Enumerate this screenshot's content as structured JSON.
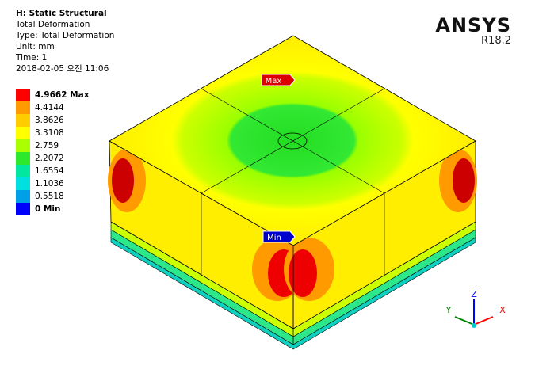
{
  "header": {
    "title": "H: Static Structural",
    "lines": [
      "Total Deformation",
      "Type: Total Deformation",
      "Unit: mm",
      "Time: 1",
      "2018-02-05 오전 11:06"
    ]
  },
  "legend": [
    {
      "label": "4.9662 Max",
      "color": "#ff0000"
    },
    {
      "label": "4.4144",
      "color": "#ff9a00"
    },
    {
      "label": "3.8626",
      "color": "#ffcc00"
    },
    {
      "label": "3.3108",
      "color": "#ffff00"
    },
    {
      "label": "2.759",
      "color": "#aaff00"
    },
    {
      "label": "2.2072",
      "color": "#2ee82e"
    },
    {
      "label": "1.6554",
      "color": "#00e8a0"
    },
    {
      "label": "1.1036",
      "color": "#00e0e0"
    },
    {
      "label": "0.5518",
      "color": "#00a0e8"
    },
    {
      "label": "0 Min",
      "color": "#0000ff"
    }
  ],
  "logo": {
    "name": "ANSYS",
    "version": "R18.2"
  },
  "probes": {
    "max": "Max",
    "min": "Min"
  },
  "axes": {
    "x": "X",
    "y": "Y",
    "z": "Z"
  }
}
